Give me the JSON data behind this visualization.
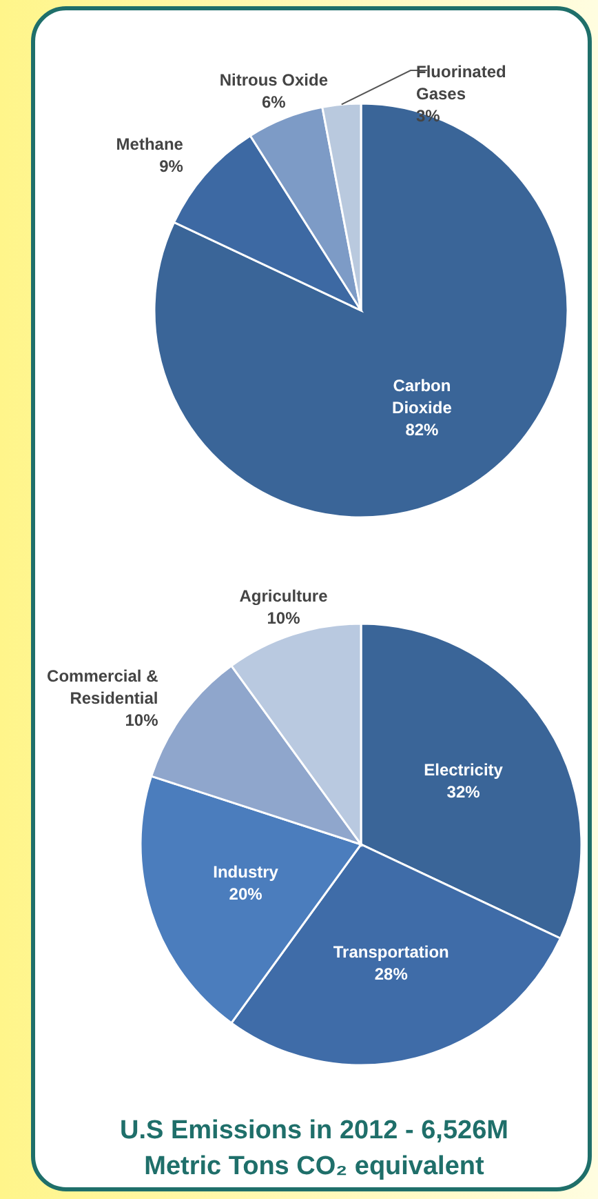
{
  "chart_data": [
    {
      "type": "pie",
      "categories": [
        "Carbon Dioxide",
        "Methane",
        "Nitrous Oxide",
        "Fluorinated Gases"
      ],
      "values": [
        82,
        9,
        6,
        3
      ],
      "colors": [
        "#3a6598",
        "#3d69a3",
        "#7d9bc6",
        "#b9c9de"
      ],
      "value_labels": [
        "82%",
        "9%",
        "6%",
        "3%"
      ]
    },
    {
      "type": "pie",
      "categories": [
        "Electricity",
        "Transportation",
        "Industry",
        "Commercial & Residential",
        "Agriculture"
      ],
      "values": [
        32,
        28,
        20,
        10,
        10
      ],
      "colors": [
        "#3a6598",
        "#3f6ca8",
        "#4b7dbd",
        "#8fa6cc",
        "#b9c9e0"
      ],
      "value_labels": [
        "32%",
        "28%",
        "20%",
        "10%",
        "10%"
      ],
      "annotations": [
        "U.S  Emissions in 2012 - 6,526M Metric Tons CO₂ equivalent"
      ]
    }
  ]
}
